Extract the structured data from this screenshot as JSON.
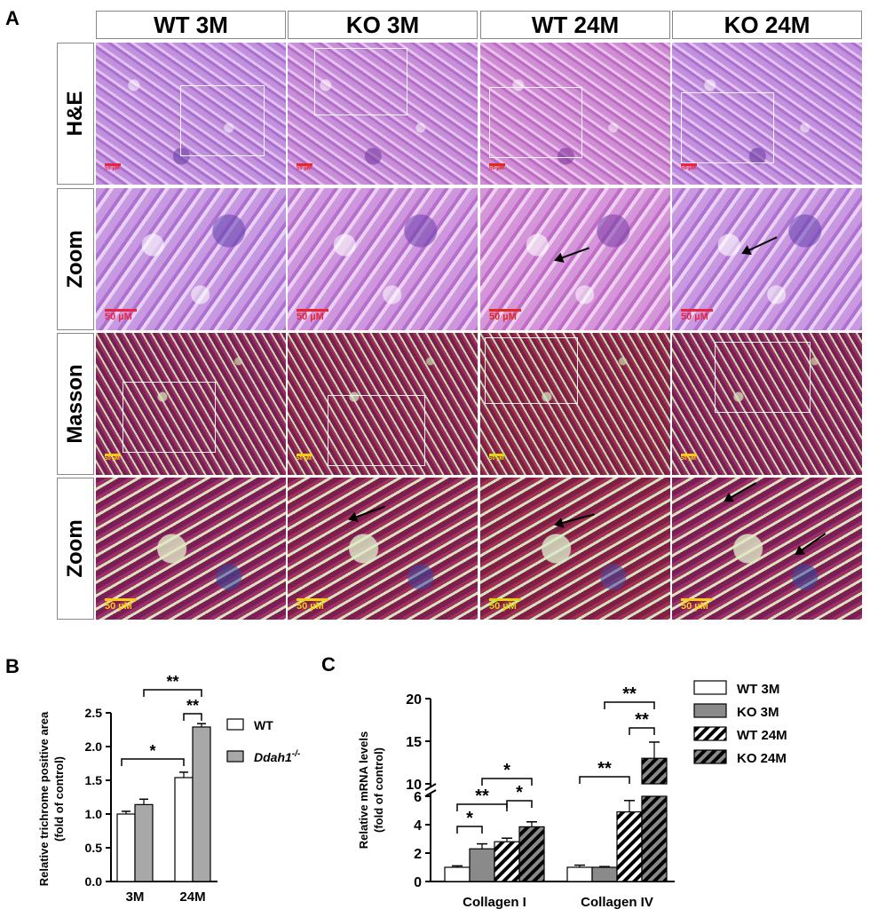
{
  "panel_a": {
    "letter": "A",
    "columns": [
      "WT 3M",
      "KO 3M",
      "WT 24M",
      "KO 24M"
    ],
    "rows": [
      {
        "label": "H&E",
        "stain": "he",
        "scale_label": "50 µM",
        "scale_color": "#e8262c"
      },
      {
        "label": "Zoom",
        "stain": "hez",
        "scale_label": "50 µM",
        "scale_color": "#e8262c"
      },
      {
        "label": "Masson",
        "stain": "ms",
        "scale_label": "50 µM",
        "scale_color": "#f2d20c"
      },
      {
        "label": "Zoom",
        "stain": "msz",
        "scale_label": "50 µM",
        "scale_color": "#f2d20c"
      }
    ]
  },
  "panel_b": {
    "letter": "B",
    "legend": [
      {
        "name": "WT",
        "fill": "#ffffff"
      },
      {
        "name": "Ddah1",
        "superscript": "-/-",
        "fill": "#a8a8a8"
      }
    ]
  },
  "panel_c": {
    "letter": "C",
    "legend": [
      {
        "name": "WT 3M",
        "fill": "white"
      },
      {
        "name": "KO 3M",
        "fill": "gray"
      },
      {
        "name": "WT 24M",
        "fill": "hatch-white"
      },
      {
        "name": "KO 24M",
        "fill": "hatch-gray"
      }
    ]
  },
  "chart_data": [
    {
      "type": "bar",
      "categories": [
        "3M",
        "24M"
      ],
      "series": [
        {
          "name": "WT",
          "values": [
            1.0,
            1.54
          ],
          "errors": [
            0.04,
            0.08
          ]
        },
        {
          "name": "Ddah1-/-",
          "values": [
            1.14,
            2.29
          ],
          "errors": [
            0.08,
            0.05
          ]
        }
      ],
      "title": "",
      "xlabel": "",
      "ylabel": "Relative trichrome positive area (fold of control)",
      "ylim": [
        0,
        2.5
      ],
      "yticks": [
        "0.0",
        "0.5",
        "1.0",
        "1.5",
        "2.0",
        "2.5"
      ],
      "annotations": [
        {
          "label": "**",
          "between": [
            "3M",
            "24M"
          ],
          "level": "top"
        },
        {
          "label": "**",
          "between": [
            "WT 24M",
            "Ddah1 24M"
          ]
        },
        {
          "label": "*",
          "between": [
            "WT 3M",
            "WT 24M"
          ]
        }
      ],
      "legend_position": "right"
    },
    {
      "type": "bar",
      "categories": [
        "Collagen I",
        "Collagen IV"
      ],
      "series": [
        {
          "name": "WT 3M",
          "values": [
            1.0,
            1.0
          ],
          "errors": [
            0.1,
            0.15
          ]
        },
        {
          "name": "KO 3M",
          "values": [
            2.3,
            1.0
          ],
          "errors": [
            0.35,
            0.05
          ]
        },
        {
          "name": "WT 24M",
          "values": [
            2.8,
            4.9
          ],
          "errors": [
            0.25,
            0.8
          ]
        },
        {
          "name": "KO 24M",
          "values": [
            3.85,
            13.0
          ],
          "errors": [
            0.35,
            1.9
          ]
        }
      ],
      "title": "",
      "xlabel": "",
      "ylabel": "Relative mRNA levels (fold of control)",
      "ylim": [
        0,
        20
      ],
      "axis_break": [
        6,
        10
      ],
      "yticks": [
        "0",
        "2",
        "4",
        "6",
        "10",
        "15",
        "20"
      ],
      "annotations": [
        {
          "label": "*",
          "group": "Collagen I",
          "between": [
            "WT 3M",
            "KO 3M"
          ]
        },
        {
          "label": "**",
          "group": "Collagen I",
          "between": [
            "WT 3M",
            "WT 24M"
          ]
        },
        {
          "label": "*",
          "group": "Collagen I",
          "between": [
            "KO 3M",
            "KO 24M"
          ]
        },
        {
          "label": "*",
          "group": "Collagen I",
          "between": [
            "WT 24M",
            "KO 24M"
          ]
        },
        {
          "label": "**",
          "group": "Collagen IV",
          "between": [
            "WT 3M",
            "WT 24M"
          ]
        },
        {
          "label": "**",
          "group": "Collagen IV",
          "between": [
            "KO 3M",
            "KO 24M"
          ]
        },
        {
          "label": "**",
          "group": "Collagen IV",
          "between": [
            "WT 24M",
            "KO 24M"
          ]
        }
      ],
      "legend_position": "right"
    }
  ]
}
